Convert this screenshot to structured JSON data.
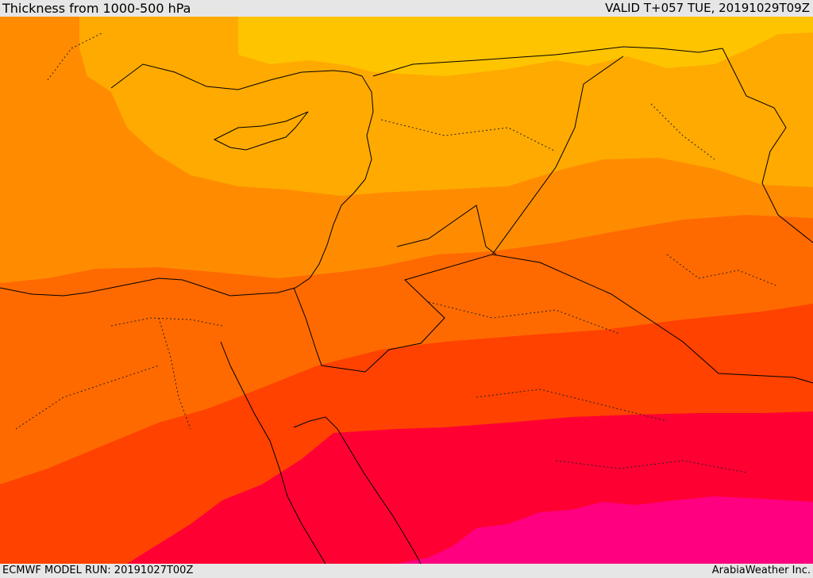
{
  "header": {
    "title": "Thickness from 1000-500 hPa",
    "valid": "VALID T+057 TUE, 20191029T09Z"
  },
  "footer": {
    "model_run": "ECMWF MODEL RUN: 20191027T00Z",
    "credit": "ArabiaWeather Inc."
  },
  "map": {
    "field": "1000-500 hPa thickness",
    "palette": {
      "band1": "#ffc400",
      "band2": "#ffaa00",
      "band3": "#ff8c00",
      "band4": "#ff6a00",
      "band5": "#ff4200",
      "band6": "#ff0033",
      "band7": "#ff0080",
      "border": "#000000"
    }
  }
}
